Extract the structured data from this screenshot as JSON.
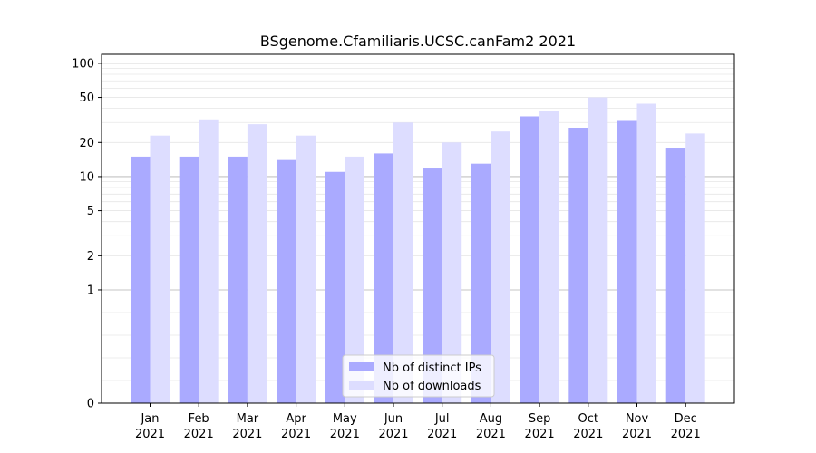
{
  "chart_data": {
    "type": "bar",
    "title": "BSgenome.Cfamiliaris.UCSC.canFam2 2021",
    "xlabel": "",
    "ylabel": "",
    "yscale": "symlog",
    "ylim": [
      0,
      120
    ],
    "yticks": [
      0,
      1,
      2,
      5,
      10,
      20,
      50,
      100
    ],
    "ytick_labels": [
      "0",
      "1",
      "2",
      "5",
      "10",
      "20",
      "50",
      "100"
    ],
    "categories": [
      "Jan",
      "Feb",
      "Mar",
      "Apr",
      "May",
      "Jun",
      "Jul",
      "Aug",
      "Sep",
      "Oct",
      "Nov",
      "Dec"
    ],
    "category_year": "2021",
    "series": [
      {
        "name": "Nb of distinct IPs",
        "color": "#aaaaff",
        "values": [
          15,
          15,
          15,
          14,
          11,
          16,
          12,
          13,
          34,
          27,
          31,
          18
        ]
      },
      {
        "name": "Nb of downloads",
        "color": "#ddddff",
        "values": [
          23,
          32,
          29,
          23,
          15,
          30,
          20,
          25,
          38,
          50,
          44,
          24
        ]
      }
    ],
    "legend_position": "bottom-center",
    "grid": true
  }
}
